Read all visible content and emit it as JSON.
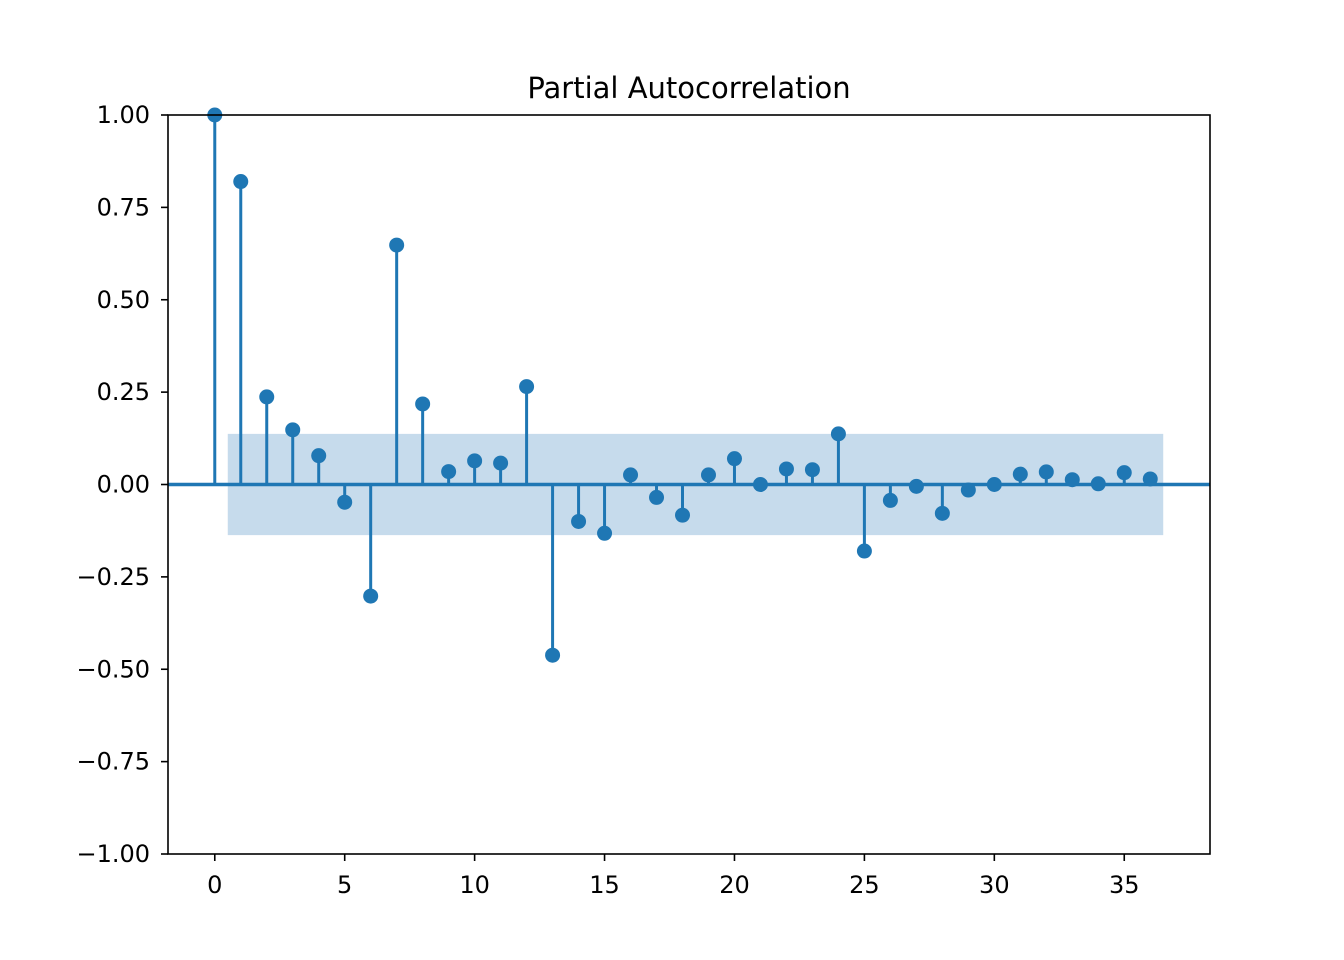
{
  "chart_data": {
    "type": "stem",
    "title": "Partial Autocorrelation",
    "xlabel": "",
    "ylabel": "",
    "x": [
      0,
      1,
      2,
      3,
      4,
      5,
      6,
      7,
      8,
      9,
      10,
      11,
      12,
      13,
      14,
      15,
      16,
      17,
      18,
      19,
      20,
      21,
      22,
      23,
      24,
      25,
      26,
      27,
      28,
      29,
      30,
      31,
      32,
      33,
      34,
      35,
      36
    ],
    "values": [
      1.0,
      0.82,
      0.237,
      0.148,
      0.078,
      -0.048,
      -0.302,
      0.648,
      0.218,
      0.035,
      0.064,
      0.058,
      0.265,
      -0.462,
      -0.1,
      -0.132,
      0.026,
      -0.035,
      -0.083,
      0.026,
      0.07,
      0.0,
      0.042,
      0.04,
      0.137,
      -0.18,
      -0.043,
      -0.005,
      -0.078,
      -0.015,
      0.0,
      0.028,
      0.034,
      0.013,
      0.002,
      0.032,
      0.015
    ],
    "confidence_band": {
      "x_start": 0.5,
      "x_end": 36.5,
      "upper": 0.137,
      "lower": -0.137
    },
    "xlim": [
      -1.8,
      38.3
    ],
    "ylim": [
      -1.0,
      1.0
    ],
    "xticks": [
      0,
      5,
      10,
      15,
      20,
      25,
      30,
      35
    ],
    "xtick_labels": [
      "0",
      "5",
      "10",
      "15",
      "20",
      "25",
      "30",
      "35"
    ],
    "yticks": [
      1.0,
      0.75,
      0.5,
      0.25,
      0.0,
      -0.25,
      -0.5,
      -0.75,
      -1.0
    ],
    "ytick_labels": [
      "1.00",
      "0.75",
      "0.50",
      "0.25",
      "0.00",
      "−0.25",
      "−0.50",
      "−0.75",
      "−1.00"
    ],
    "grid": false,
    "colors": {
      "series": "#1f77b4",
      "band": "#c6dbec",
      "axes": "#000000"
    }
  }
}
